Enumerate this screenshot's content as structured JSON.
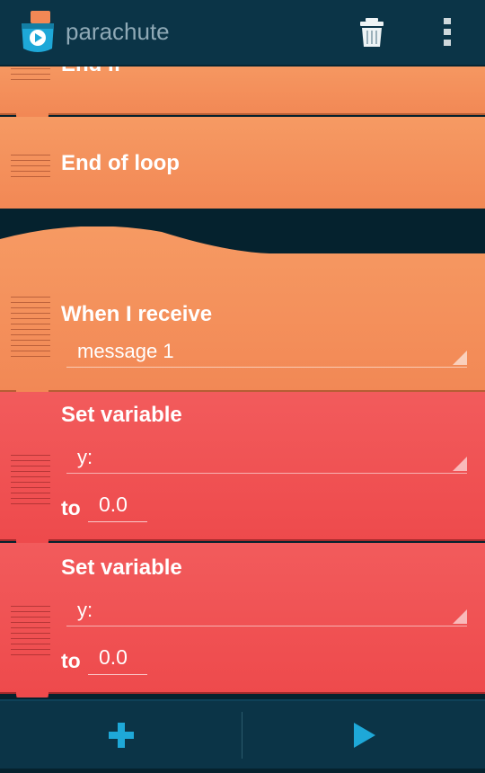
{
  "app": {
    "title": "parachute"
  },
  "toolbar": {
    "trash_icon": "trash-icon",
    "overflow_icon": "more-vertical-icon"
  },
  "bricks": [
    {
      "type": "end-if",
      "title": "End If",
      "color": "#f28855"
    },
    {
      "type": "end-of-loop",
      "title": "End of loop",
      "color": "#f28855"
    },
    {
      "type": "when-i-receive",
      "title": "When I receive",
      "message": "message 1",
      "color": "#f28855"
    },
    {
      "type": "set-variable",
      "title": "Set variable",
      "variable": "y:",
      "to_label": "to",
      "value": "0.0",
      "color": "#ee4a4c"
    },
    {
      "type": "set-variable",
      "title": "Set variable",
      "variable": "y:",
      "to_label": "to",
      "value": "0.0",
      "color": "#ee4a4c"
    }
  ],
  "bottom_bar": {
    "add_icon": "plus-icon",
    "play_icon": "play-icon",
    "accent": "#1ea8d8"
  }
}
